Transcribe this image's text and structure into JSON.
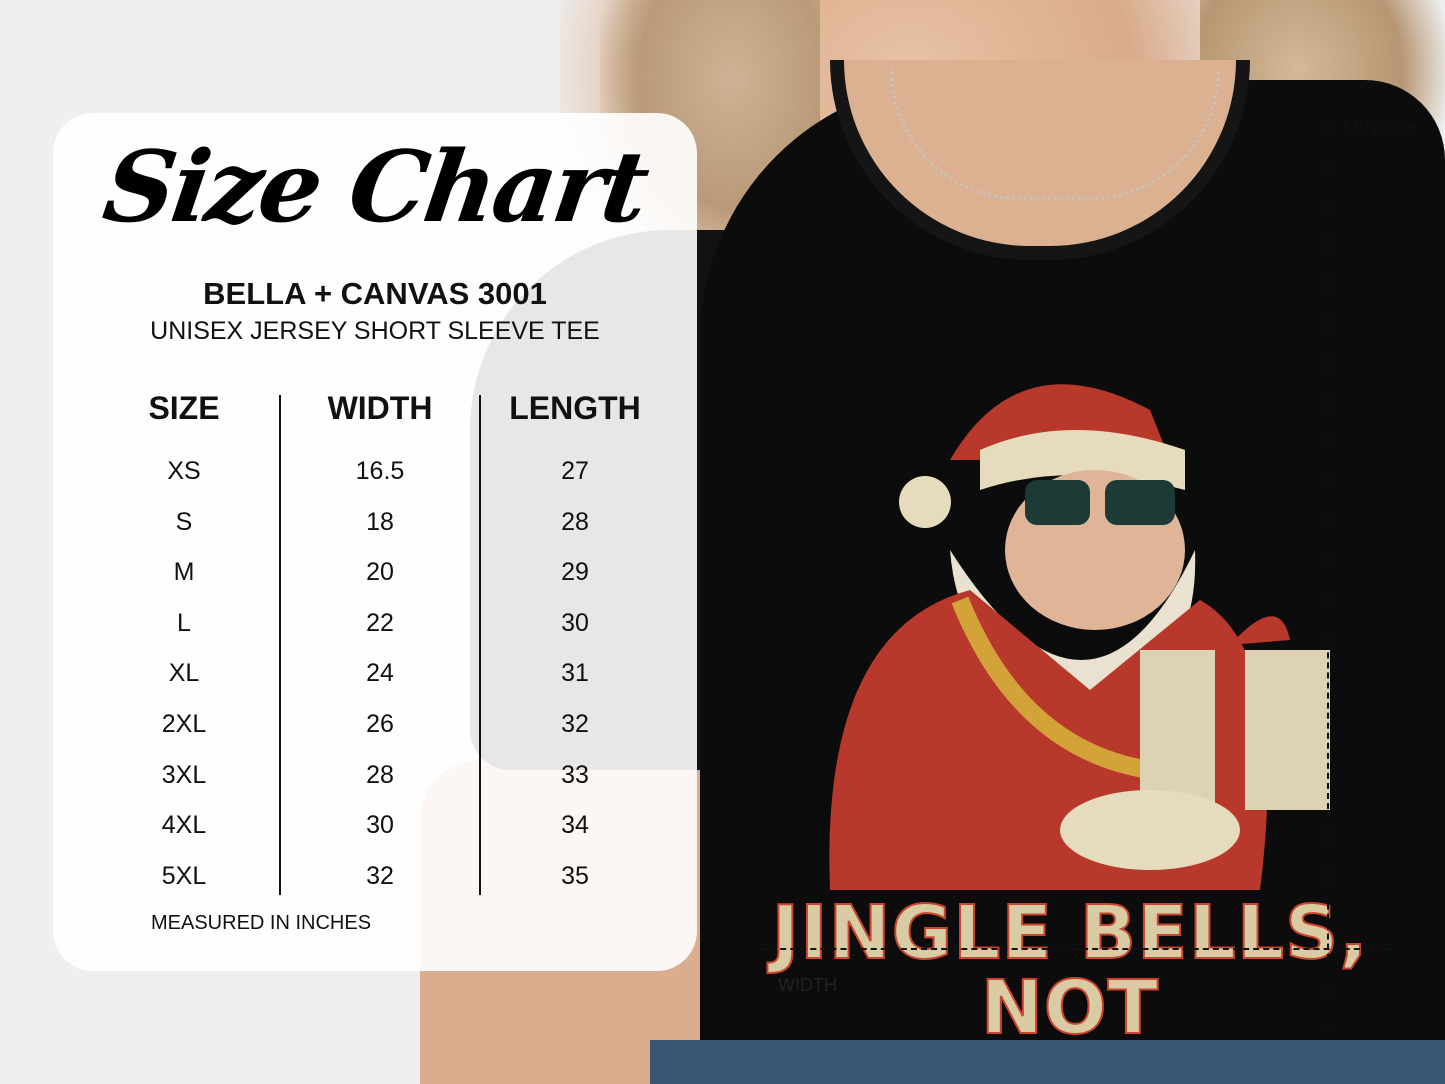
{
  "chart": {
    "title": "Size Chart",
    "brand": "BELLA + CANVAS 3001",
    "subtitle": "UNISEX JERSEY SHORT SLEEVE TEE",
    "headers": [
      "SIZE",
      "WIDTH",
      "LENGTH"
    ],
    "rows": [
      [
        "XS",
        "16.5",
        "27"
      ],
      [
        "S",
        "18",
        "28"
      ],
      [
        "M",
        "20",
        "29"
      ],
      [
        "L",
        "22",
        "30"
      ],
      [
        "XL",
        "24",
        "31"
      ],
      [
        "2XL",
        "26",
        "32"
      ],
      [
        "3XL",
        "28",
        "33"
      ],
      [
        "4XL",
        "30",
        "34"
      ],
      [
        "5XL",
        "32",
        "35"
      ]
    ],
    "note": "MEASURED IN INCHES"
  },
  "shirt": {
    "slogan_line1": "JINGLE BELLS,",
    "slogan_line2": "NOT",
    "length_label": "LENGTH",
    "width_label": "WIDTH"
  }
}
